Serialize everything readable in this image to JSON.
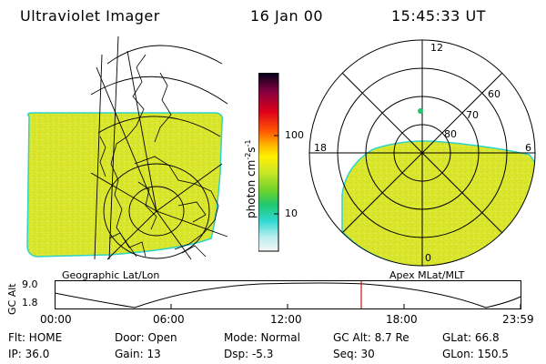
{
  "header": {
    "title": "Ultraviolet Imager",
    "date": "16 Jan 00",
    "time": "15:45:33 UT"
  },
  "left_panel": {
    "label": "Geographic Lat/Lon"
  },
  "right_panel": {
    "label": "Apex MLat/MLT",
    "mlt_labels": {
      "top": "12",
      "left": "18",
      "right": "6",
      "bottom": "0"
    },
    "lat_labels": [
      "60",
      "70",
      "80"
    ]
  },
  "colorbar": {
    "unit_label": "photon cm",
    "unit_sup1": "-2",
    "unit_mid": "s",
    "unit_sup2": "-1",
    "ticks": [
      "100",
      "10"
    ],
    "scale": "log"
  },
  "altitude_strip": {
    "ylabel": "GC Alt",
    "ymax": "9.0",
    "ymin": "1.8",
    "x_ticks": [
      "00:00",
      "06:00",
      "12:00",
      "18:00",
      "23:59"
    ],
    "cursor_time": "15:45"
  },
  "footer": {
    "row1": {
      "flt": "Flt: HOME",
      "door": "Door: Open",
      "mode": "Mode: Normal",
      "gcalt": "GC Alt: 8.7 Re",
      "glat": "GLat:  66.8"
    },
    "row2": {
      "ip": "IP: 36.0",
      "gain": "Gain: 13",
      "dsp": "Dsp:    -5.3",
      "seq": "Seq: 30",
      "glon": "GLon: 150.5"
    }
  },
  "colors": {
    "emission": "#dce82a",
    "emission_edge": "#2fd3c8",
    "cursor": "#d01010",
    "spot": "#22c56a"
  }
}
